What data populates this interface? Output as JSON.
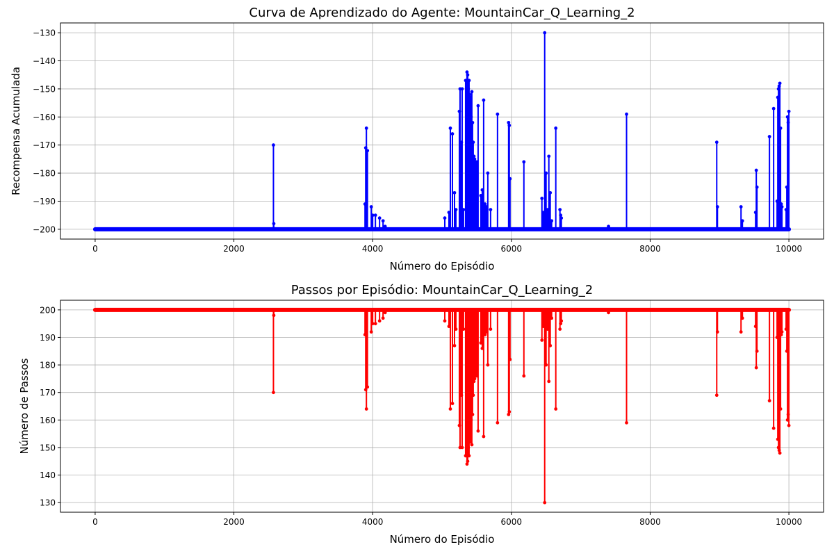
{
  "chart_data": [
    {
      "type": "line",
      "title": "Curva de Aprendizado do Agente: MountainCar_Q_Learning_2",
      "xlabel": "Número do Episódio",
      "ylabel": "Recompensa Acumulada",
      "xlim": [
        -500,
        10500
      ],
      "ylim": [
        -203.5,
        -126.5
      ],
      "xticks": [
        0,
        2000,
        4000,
        6000,
        8000,
        10000
      ],
      "yticks": [
        -130,
        -140,
        -150,
        -160,
        -170,
        -180,
        -190,
        -200
      ],
      "xtick_labels": [
        "0",
        "2000",
        "4000",
        "6000",
        "8000",
        "10000"
      ],
      "ytick_labels": [
        "−130",
        "−140",
        "−150",
        "−160",
        "−170",
        "−180",
        "−190",
        "−200"
      ],
      "grid": true,
      "color": "#0000ff",
      "marker": "circle",
      "baseline": -200,
      "x_range": [
        0,
        10000
      ],
      "series": [
        {
          "x": [
            2570,
            2575,
            3890,
            3900,
            3910,
            3915,
            3925,
            3930,
            3980,
            4000,
            4040,
            4100,
            4150,
            4180,
            5040,
            5100,
            5120,
            5150,
            5180,
            5200,
            5250,
            5260,
            5270,
            5280,
            5290,
            5300,
            5310,
            5320,
            5340,
            5360,
            5370,
            5380,
            5390,
            5400,
            5410,
            5420,
            5430,
            5440,
            5450,
            5460,
            5470,
            5480,
            5490,
            5500,
            5520,
            5560,
            5580,
            5600,
            5620,
            5640,
            5660,
            5700,
            5720,
            5800,
            5950,
            5960,
            5970,
            5980,
            6180,
            6440,
            6460,
            6480,
            6500,
            6520,
            6540,
            6560,
            6580,
            6640,
            6700,
            6710,
            6720,
            7400,
            7660,
            8960,
            8970,
            9310,
            9330,
            9520,
            9530,
            9540,
            9720,
            9780,
            9830,
            9840,
            9850,
            9860,
            9870,
            9880,
            9890,
            9900,
            9960,
            9970,
            9980,
            9990,
            10000
          ],
          "y": [
            -170,
            -198,
            -191,
            -171,
            -164,
            -172,
            -172,
            -200,
            -192,
            -195,
            -195,
            -196,
            -197,
            -199,
            -196,
            -194,
            -164,
            -166,
            -187,
            -193,
            -158,
            -150,
            -190,
            -169,
            -150,
            -200,
            -193,
            -200,
            -147,
            -144,
            -145,
            -150,
            -147,
            -152,
            -153,
            -160,
            -151,
            -162,
            -169,
            -174,
            -175,
            -176,
            -195,
            -176,
            -156,
            -188,
            -186,
            -154,
            -191,
            -192,
            -180,
            -193,
            -200,
            -159,
            -200,
            -162,
            -163,
            -182,
            -176,
            -189,
            -194,
            -130,
            -180,
            -193,
            -174,
            -187,
            -197,
            -164,
            -193,
            -195,
            -196,
            -199,
            -159,
            -169,
            -192,
            -192,
            -197,
            -194,
            -179,
            -185,
            -167,
            -157,
            -190,
            -153,
            -150,
            -149,
            -148,
            -164,
            -191,
            -192,
            -193,
            -185,
            -160,
            -162,
            -158
          ]
        }
      ]
    },
    {
      "type": "line",
      "title": "Passos por Episódio: MountainCar_Q_Learning_2",
      "xlabel": "Número do Episódio",
      "ylabel": "Número de Passos",
      "xlim": [
        -500,
        10500
      ],
      "ylim": [
        126.5,
        203.5
      ],
      "xticks": [
        0,
        2000,
        4000,
        6000,
        8000,
        10000
      ],
      "yticks": [
        130,
        140,
        150,
        160,
        170,
        180,
        190,
        200
      ],
      "xtick_labels": [
        "0",
        "2000",
        "4000",
        "6000",
        "8000",
        "10000"
      ],
      "ytick_labels": [
        "130",
        "140",
        "150",
        "160",
        "170",
        "180",
        "190",
        "200"
      ],
      "grid": true,
      "color": "#ff0000",
      "marker": "circle",
      "baseline": 200,
      "x_range": [
        0,
        10000
      ],
      "series": [
        {
          "x": [
            2570,
            2575,
            3890,
            3900,
            3910,
            3915,
            3925,
            3930,
            3980,
            4000,
            4040,
            4100,
            4150,
            4180,
            5040,
            5100,
            5120,
            5150,
            5180,
            5200,
            5250,
            5260,
            5270,
            5280,
            5290,
            5300,
            5310,
            5320,
            5340,
            5360,
            5370,
            5380,
            5390,
            5400,
            5410,
            5420,
            5430,
            5440,
            5450,
            5460,
            5470,
            5480,
            5490,
            5500,
            5520,
            5560,
            5580,
            5600,
            5620,
            5640,
            5660,
            5700,
            5720,
            5800,
            5950,
            5960,
            5970,
            5980,
            6180,
            6440,
            6460,
            6480,
            6500,
            6520,
            6540,
            6560,
            6580,
            6640,
            6700,
            6710,
            6720,
            7400,
            7660,
            8960,
            8970,
            9310,
            9330,
            9520,
            9530,
            9540,
            9720,
            9780,
            9830,
            9840,
            9850,
            9860,
            9870,
            9880,
            9890,
            9900,
            9960,
            9970,
            9980,
            9990,
            10000
          ],
          "y": [
            170,
            198,
            191,
            171,
            164,
            172,
            172,
            200,
            192,
            195,
            195,
            196,
            197,
            199,
            196,
            194,
            164,
            166,
            187,
            193,
            158,
            150,
            190,
            169,
            150,
            200,
            193,
            200,
            147,
            144,
            145,
            150,
            147,
            152,
            153,
            160,
            151,
            162,
            169,
            174,
            175,
            176,
            195,
            176,
            156,
            188,
            186,
            154,
            191,
            192,
            180,
            193,
            200,
            159,
            200,
            162,
            163,
            182,
            176,
            189,
            194,
            130,
            180,
            193,
            174,
            187,
            197,
            164,
            193,
            195,
            196,
            199,
            159,
            169,
            192,
            192,
            197,
            194,
            179,
            185,
            167,
            157,
            190,
            153,
            150,
            149,
            148,
            164,
            191,
            192,
            193,
            185,
            160,
            162,
            158
          ]
        }
      ]
    }
  ]
}
